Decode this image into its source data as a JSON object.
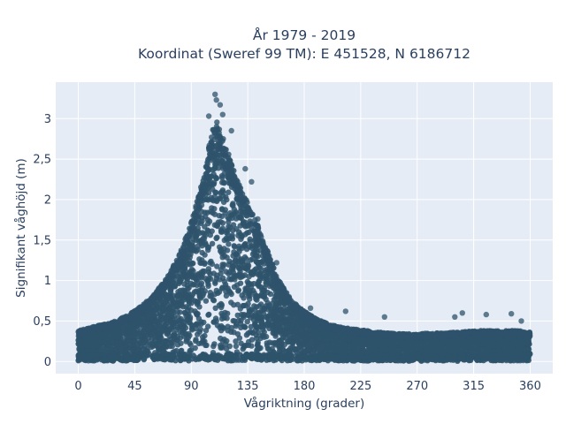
{
  "chart_data": {
    "type": "scatter",
    "title_lines": [
      "År 1979 - 2019",
      "Koordinat (Sweref 99 TM): E 451528, N 6186712"
    ],
    "xlabel": "Vågriktning (grader)",
    "ylabel": "Signifikant våghöjd (m)",
    "xlim": [
      -18,
      378
    ],
    "ylim": [
      -0.15,
      3.45
    ],
    "x_ticks": [
      0,
      45,
      90,
      135,
      180,
      225,
      270,
      315,
      360
    ],
    "x_tick_labels": [
      "0",
      "45",
      "90",
      "135",
      "180",
      "225",
      "270",
      "315",
      "360"
    ],
    "y_ticks": [
      0,
      0.5,
      1,
      1.5,
      2,
      2.5,
      3
    ],
    "y_tick_labels": [
      "0",
      "0,5",
      "1",
      "1,5",
      "2",
      "2,5",
      "3"
    ],
    "grid": true,
    "legend": false,
    "colors": {
      "marker": "#2e536b",
      "plot_background": "#e5ecf6",
      "grid": "#ffffff",
      "text": "#2a3f5f"
    },
    "envelope": {
      "description_points": "upper bound of the dense point cloud (direction deg, height m)",
      "x": [
        0,
        10,
        20,
        30,
        40,
        50,
        60,
        70,
        80,
        90,
        95,
        100,
        105,
        110,
        115,
        120,
        125,
        130,
        135,
        140,
        145,
        150,
        155,
        160,
        170,
        180,
        190,
        200,
        210,
        220,
        230,
        240,
        250,
        260,
        270,
        280,
        290,
        300,
        310,
        320,
        330,
        340,
        350,
        360
      ],
      "y": [
        0.38,
        0.42,
        0.46,
        0.5,
        0.58,
        0.68,
        0.82,
        1.02,
        1.3,
        1.72,
        2.0,
        2.3,
        2.75,
        3.0,
        2.8,
        2.55,
        2.3,
        2.15,
        2.0,
        1.8,
        1.6,
        1.4,
        1.2,
        1.0,
        0.75,
        0.62,
        0.52,
        0.46,
        0.42,
        0.4,
        0.38,
        0.36,
        0.35,
        0.34,
        0.34,
        0.35,
        0.35,
        0.36,
        0.37,
        0.38,
        0.38,
        0.38,
        0.38,
        0.36
      ]
    },
    "notable_points": [
      {
        "x": 109,
        "y": 3.3
      },
      {
        "x": 110,
        "y": 3.23
      },
      {
        "x": 113,
        "y": 3.17
      },
      {
        "x": 104,
        "y": 3.03
      },
      {
        "x": 115,
        "y": 3.05
      },
      {
        "x": 122,
        "y": 2.85
      },
      {
        "x": 133,
        "y": 2.38
      },
      {
        "x": 138,
        "y": 2.22
      },
      {
        "x": 143,
        "y": 1.76
      },
      {
        "x": 158,
        "y": 1.22
      },
      {
        "x": 185,
        "y": 0.66
      },
      {
        "x": 213,
        "y": 0.62
      },
      {
        "x": 244,
        "y": 0.55
      },
      {
        "x": 300,
        "y": 0.55
      },
      {
        "x": 306,
        "y": 0.6
      },
      {
        "x": 325,
        "y": 0.58
      },
      {
        "x": 345,
        "y": 0.59
      },
      {
        "x": 353,
        "y": 0.5
      }
    ]
  }
}
